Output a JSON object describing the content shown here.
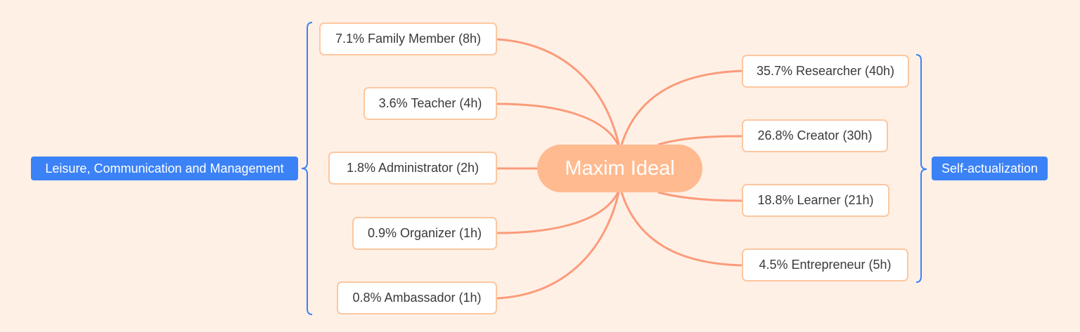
{
  "mindmap": {
    "central_topic": "Maxim Ideal",
    "branch_color": "#fb9b7a",
    "group_color": "#3b82f6",
    "left_group": {
      "label": "Leisure, Communication and Management",
      "topics": [
        "7.1% Family Member (8h)",
        "3.6% Teacher (4h)",
        "1.8% Administrator (2h)",
        "0.9% Organizer (1h)",
        "0.8% Ambassador (1h)"
      ]
    },
    "right_group": {
      "label": "Self-actualization",
      "topics": [
        "35.7% Researcher (40h)",
        "26.8% Creator (30h)",
        "18.8% Learner (21h)",
        "4.5% Entrepreneur (5h)"
      ]
    }
  }
}
